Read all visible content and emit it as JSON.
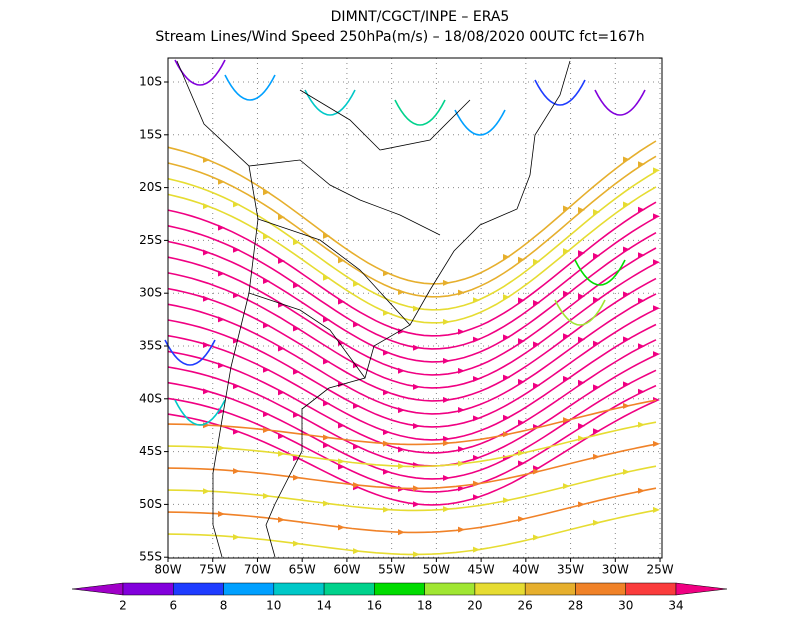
{
  "title": {
    "line1": "DIMNT/CGCT/INPE –  ERA5",
    "line2": "Stream Lines/Wind Speed 250hPa(m/s) –  18/08/2020 00UTC fct=167h"
  },
  "map": {
    "lat_labels": [
      "10S",
      "15S",
      "20S",
      "25S",
      "30S",
      "35S",
      "40S",
      "45S",
      "50S",
      "55S"
    ],
    "lon_labels": [
      "80W",
      "75W",
      "70W",
      "65W",
      "60W",
      "55W",
      "50W",
      "45W",
      "40W",
      "35W",
      "30W",
      "25W"
    ]
  },
  "colorbar": {
    "labels": [
      "2",
      "6",
      "8",
      "10",
      "14",
      "16",
      "18",
      "20",
      "26",
      "28",
      "30",
      "34"
    ],
    "colors": [
      "#a000c8",
      "#8200dc",
      "#1e3cff",
      "#00a0ff",
      "#00c8c8",
      "#00d28c",
      "#00dc00",
      "#a0e632",
      "#e6dc32",
      "#e6af2d",
      "#f08228",
      "#fa3c3c",
      "#f00082"
    ]
  }
}
